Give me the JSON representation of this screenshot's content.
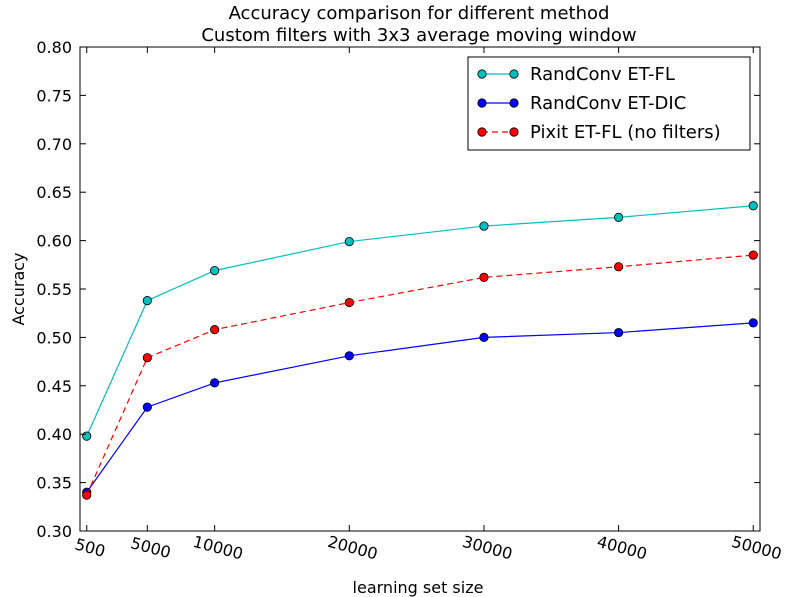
{
  "chart_data": {
    "type": "line",
    "title": "Accuracy comparison for different method",
    "subtitle": "Custom filters with 3x3 average moving window",
    "xlabel": "learning set size",
    "ylabel": "Accuracy",
    "x": [
      500,
      5000,
      10000,
      20000,
      30000,
      40000,
      50000
    ],
    "x_tick_labels": [
      "500",
      "5000",
      "10000",
      "20000",
      "30000",
      "40000",
      "50000"
    ],
    "xlim": [
      0,
      50500
    ],
    "ylim": [
      0.3,
      0.8
    ],
    "y_ticks": [
      0.3,
      0.35,
      0.4,
      0.45,
      0.5,
      0.55,
      0.6,
      0.65,
      0.7,
      0.75,
      0.8
    ],
    "y_tick_labels": [
      "0.30",
      "0.35",
      "0.40",
      "0.45",
      "0.50",
      "0.55",
      "0.60",
      "0.65",
      "0.70",
      "0.75",
      "0.80"
    ],
    "grid": false,
    "legend_position": "top-right",
    "series": [
      {
        "name": "RandConv ET-FL",
        "color": "#00bfbf",
        "line_style": "solid",
        "values": [
          0.398,
          0.538,
          0.569,
          0.599,
          0.615,
          0.624,
          0.636
        ]
      },
      {
        "name": "RandConv ET-DIC",
        "color": "#0000ff",
        "line_style": "solid",
        "values": [
          0.34,
          0.428,
          0.453,
          0.481,
          0.5,
          0.505,
          0.515
        ]
      },
      {
        "name": "Pixit ET-FL (no filters)",
        "color": "#ff0000",
        "line_style": "dashed",
        "values": [
          0.337,
          0.479,
          0.508,
          0.536,
          0.562,
          0.573,
          0.585
        ]
      }
    ]
  }
}
